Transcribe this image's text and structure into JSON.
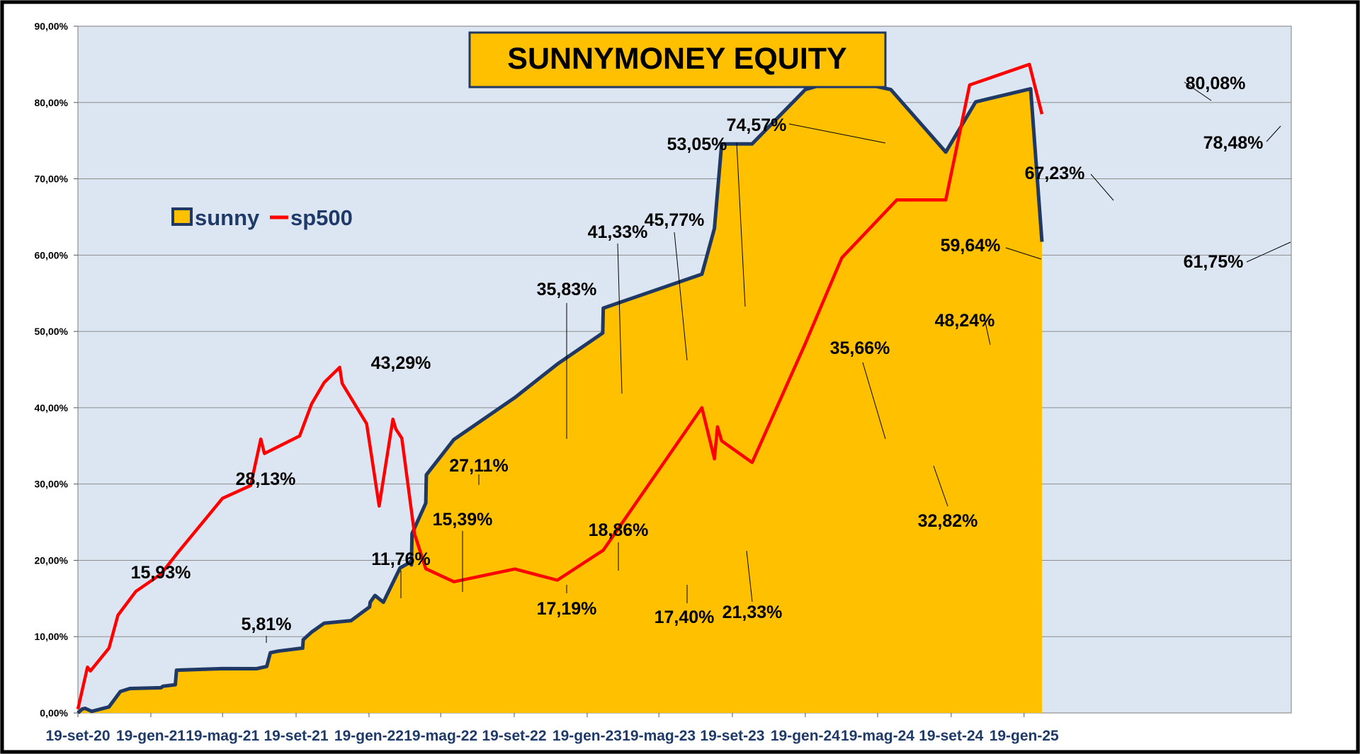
{
  "chart_data": {
    "type": "area",
    "title": "SUNNYMONEY EQUITY",
    "ylim": [
      0,
      90
    ],
    "y_ticks": [
      "0,00%",
      "10,00%",
      "20,00%",
      "30,00%",
      "40,00%",
      "50,00%",
      "60,00%",
      "70,00%",
      "80,00%",
      "90,00%"
    ],
    "x_ticks": [
      "19-set-20",
      "19-gen-21",
      "19-mag-21",
      "19-set-21",
      "19-gen-22",
      "19-mag-22",
      "19-set-22",
      "19-gen-23",
      "19-mag-23",
      "19-set-23",
      "19-gen-24",
      "19-mag-24",
      "19-set-24",
      "19-gen-25"
    ],
    "grid": "horizontal",
    "legend_position": "top-left",
    "colors": {
      "sunny_fill": "#ffc000",
      "sunny_line": "#1f3864",
      "sp500_line": "#ff0000",
      "plot_bg": "#dce6f2"
    },
    "series": [
      {
        "name": "sunny",
        "type": "area",
        "points": [
          [
            "2020-09-19",
            0
          ],
          [
            "2020-09-26",
            0.5
          ],
          [
            "2020-10-01",
            0.6
          ],
          [
            "2020-10-12",
            0.2
          ],
          [
            "2020-11-10",
            0.8
          ],
          [
            "2020-11-29",
            2.8
          ],
          [
            "2020-12-15",
            3.2
          ],
          [
            "2021-02-05",
            3.3
          ],
          [
            "2021-02-08",
            3.5
          ],
          [
            "2021-03-01",
            3.7
          ],
          [
            "2021-03-03",
            5.6
          ],
          [
            "2021-05-19",
            5.81
          ],
          [
            "2021-07-15",
            5.8
          ],
          [
            "2021-08-01",
            6.1
          ],
          [
            "2021-08-07",
            7.9
          ],
          [
            "2021-08-20",
            8.1
          ],
          [
            "2021-09-30",
            8.5
          ],
          [
            "2021-10-01",
            9.6
          ],
          [
            "2021-10-15",
            10.6
          ],
          [
            "2021-11-05",
            11.76
          ],
          [
            "2021-12-20",
            12.1
          ],
          [
            "2022-01-20",
            13.9
          ],
          [
            "2022-01-21",
            14.5
          ],
          [
            "2022-01-29",
            15.39
          ],
          [
            "2022-02-12",
            14.5
          ],
          [
            "2022-03-12",
            19.0
          ],
          [
            "2022-03-30",
            19.8
          ],
          [
            "2022-03-31",
            19.4
          ],
          [
            "2022-04-01",
            23.5
          ],
          [
            "2022-04-24",
            27.5
          ],
          [
            "2022-04-25",
            31.2
          ],
          [
            "2022-06-10",
            35.83
          ],
          [
            "2022-09-20",
            41.33
          ],
          [
            "2022-12-01",
            45.77
          ],
          [
            "2023-02-14",
            49.8
          ],
          [
            "2023-02-15",
            53.05
          ],
          [
            "2023-07-30",
            57.5
          ],
          [
            "2023-08-20",
            63.5
          ],
          [
            "2023-09-01",
            74.57
          ],
          [
            "2023-10-22",
            74.57
          ],
          [
            "2024-01-19",
            81.7
          ],
          [
            "2024-03-20",
            83.1
          ],
          [
            "2024-06-10",
            81.7
          ],
          [
            "2024-09-10",
            73.5
          ],
          [
            "2024-10-30",
            80.08
          ],
          [
            "2025-01-30",
            81.8
          ],
          [
            "2025-02-18",
            61.75
          ]
        ]
      },
      {
        "name": "sp500",
        "type": "line",
        "points": [
          [
            "2020-09-19",
            0.5
          ],
          [
            "2020-10-05",
            6.0
          ],
          [
            "2020-10-10",
            5.5
          ],
          [
            "2020-11-10",
            8.5
          ],
          [
            "2020-11-25",
            12.8
          ],
          [
            "2020-12-25",
            15.93
          ],
          [
            "2021-02-05",
            18.2
          ],
          [
            "2021-03-05",
            21.0
          ],
          [
            "2021-05-19",
            28.13
          ],
          [
            "2021-07-05",
            29.8
          ],
          [
            "2021-07-22",
            35.9
          ],
          [
            "2021-07-28",
            34.0
          ],
          [
            "2021-09-25",
            36.3
          ],
          [
            "2021-10-15",
            40.5
          ],
          [
            "2021-11-05",
            43.29
          ],
          [
            "2021-12-01",
            45.3
          ],
          [
            "2021-12-05",
            43.2
          ],
          [
            "2022-01-15",
            37.9
          ],
          [
            "2022-02-05",
            27.11
          ],
          [
            "2022-02-28",
            38.5
          ],
          [
            "2022-03-05",
            37.2
          ],
          [
            "2022-03-15",
            36.0
          ],
          [
            "2022-04-05",
            23.5
          ],
          [
            "2022-04-24",
            18.9
          ],
          [
            "2022-06-10",
            17.19
          ],
          [
            "2022-09-20",
            18.86
          ],
          [
            "2022-11-30",
            17.4
          ],
          [
            "2023-02-15",
            21.33
          ],
          [
            "2023-07-30",
            40.0
          ],
          [
            "2023-08-20",
            33.3
          ],
          [
            "2023-08-25",
            37.5
          ],
          [
            "2023-09-01",
            35.66
          ],
          [
            "2023-10-22",
            32.82
          ],
          [
            "2024-01-18",
            48.24
          ],
          [
            "2024-03-20",
            59.64
          ],
          [
            "2024-06-20",
            67.23
          ],
          [
            "2024-09-10",
            67.23
          ],
          [
            "2024-10-20",
            82.3
          ],
          [
            "2025-01-28",
            85.0
          ],
          [
            "2025-02-18",
            78.48
          ]
        ]
      }
    ],
    "annotations": [
      {
        "series": "sunny",
        "label": "5,81%",
        "date": "2021-05-19",
        "value": 5.81
      },
      {
        "series": "sunny",
        "label": "11,76%",
        "date": "2021-11-05",
        "value": 11.76
      },
      {
        "series": "sunny",
        "label": "15,39%",
        "date": "2022-01-29",
        "value": 15.39
      },
      {
        "series": "sunny",
        "label": "35,83%",
        "date": "2022-06-10",
        "value": 35.83
      },
      {
        "series": "sunny",
        "label": "41,33%",
        "date": "2022-09-20",
        "value": 41.33
      },
      {
        "series": "sunny",
        "label": "45,77%",
        "date": "2022-12-01",
        "value": 45.77
      },
      {
        "series": "sunny",
        "label": "53,05%",
        "date": "2023-02-15",
        "value": 53.05
      },
      {
        "series": "sunny",
        "label": "74,57%",
        "date": "2023-09-01",
        "value": 74.57
      },
      {
        "series": "sunny",
        "label": "80,08%",
        "date": "2024-10-30",
        "value": 80.08
      },
      {
        "series": "sunny",
        "label": "61,75%",
        "date": "2025-02-18",
        "value": 61.75
      },
      {
        "series": "sp500",
        "label": "15,93%",
        "date": "2020-12-25",
        "value": 15.93
      },
      {
        "series": "sp500",
        "label": "28,13%",
        "date": "2021-05-19",
        "value": 28.13
      },
      {
        "series": "sp500",
        "label": "43,29%",
        "date": "2021-11-05",
        "value": 43.29
      },
      {
        "series": "sp500",
        "label": "27,11%",
        "date": "2022-02-05",
        "value": 27.11
      },
      {
        "series": "sp500",
        "label": "17,19%",
        "date": "2022-06-10",
        "value": 17.19
      },
      {
        "series": "sp500",
        "label": "18,86%",
        "date": "2022-09-20",
        "value": 18.86
      },
      {
        "series": "sp500",
        "label": "17,40%",
        "date": "2022-11-30",
        "value": 17.4
      },
      {
        "series": "sp500",
        "label": "21,33%",
        "date": "2023-02-15",
        "value": 21.33
      },
      {
        "series": "sp500",
        "label": "35,66%",
        "date": "2023-09-01",
        "value": 35.66
      },
      {
        "series": "sp500",
        "label": "32,82%",
        "date": "2023-10-22",
        "value": 32.82
      },
      {
        "series": "sp500",
        "label": "48,24%",
        "date": "2024-01-18",
        "value": 48.24
      },
      {
        "series": "sp500",
        "label": "59,64%",
        "date": "2024-03-20",
        "value": 59.64
      },
      {
        "series": "sp500",
        "label": "67,23%",
        "date": "2024-06-20",
        "value": 67.23
      },
      {
        "series": "sp500",
        "label": "78,48%",
        "date": "2025-02-18",
        "value": 78.48
      }
    ]
  }
}
